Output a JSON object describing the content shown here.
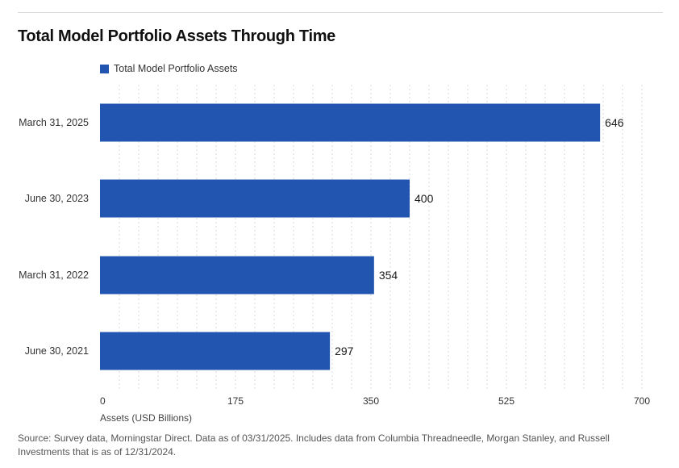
{
  "title": "Total Model Portfolio Assets Through Time",
  "legend": {
    "label": "Total Model Portfolio Assets",
    "color": "#2255b0"
  },
  "chart_data": {
    "type": "bar",
    "orientation": "horizontal",
    "title": "Total Model Portfolio Assets Through Time",
    "categories": [
      "March 31, 2025",
      "June 30, 2023",
      "March 31, 2022",
      "June 30, 2021"
    ],
    "values": [
      646,
      400,
      354,
      297
    ],
    "series": [
      {
        "name": "Total Model Portfolio Assets",
        "values": [
          646,
          400,
          354,
          297
        ]
      }
    ],
    "xlabel": "Assets (USD Billions)",
    "ylabel": "",
    "xlim": [
      0,
      700
    ],
    "x_ticks": [
      "0",
      "175",
      "350",
      "525",
      "700"
    ],
    "tick_values": [
      0,
      175,
      350,
      525,
      700
    ],
    "gridlines": true,
    "legend_position": "top-left"
  },
  "source": "Source: Survey data, Morningstar Direct. Data as of 03/31/2025. Includes data from Columbia Threadneedle, Morgan Stanley, and Russell Investments that is as of 12/31/2024."
}
